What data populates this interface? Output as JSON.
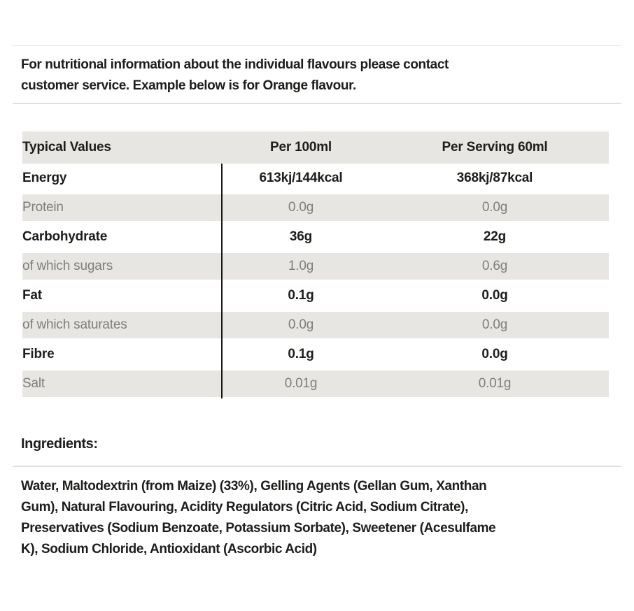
{
  "intro": {
    "lines": [
      "For nutritional information about the individual flavours please contact",
      "customer service. Example below is for Orange flavour."
    ]
  },
  "table": {
    "headers": {
      "label": "Typical Values",
      "per_100ml": "Per 100ml",
      "per_serving": "Per Serving 60ml"
    },
    "rows": [
      {
        "label": "Energy",
        "per_100ml": "613kj/144kcal",
        "per_serving": "368kj/87kcal"
      },
      {
        "label": "Protein",
        "per_100ml": "0.0g",
        "per_serving": "0.0g"
      },
      {
        "label": "Carbohydrate",
        "per_100ml": "36g",
        "per_serving": "22g"
      },
      {
        "label": "of which sugars",
        "per_100ml": "1.0g",
        "per_serving": "0.6g"
      },
      {
        "label": "Fat",
        "per_100ml": "0.1g",
        "per_serving": "0.0g"
      },
      {
        "label": "of which saturates",
        "per_100ml": "0.0g",
        "per_serving": "0.0g"
      },
      {
        "label": "Fibre",
        "per_100ml": "0.1g",
        "per_serving": "0.0g"
      },
      {
        "label": "Salt",
        "per_100ml": "0.01g",
        "per_serving": "0.01g"
      }
    ]
  },
  "ingredients": {
    "heading": "Ingredients:",
    "lines": [
      "Water, Maltodextrin (from Maize) (33%), Gelling Agents (Gellan Gum, Xanthan",
      "Gum), Natural Flavouring, Acidity Regulators (Citric Acid, Sodium Citrate),",
      "Preservatives (Sodium Benzoate, Potassium Sorbate), Sweetener (Acesulfame",
      "K), Sodium Chloride, Antioxidant (Ascorbic Acid)"
    ]
  },
  "colors": {
    "stripe_bg": "#e8e6e2",
    "text_dark": "#1f1d1b",
    "text_muted": "#807e7c",
    "divider": "#e3e0dc",
    "table_rule": "#171717"
  }
}
